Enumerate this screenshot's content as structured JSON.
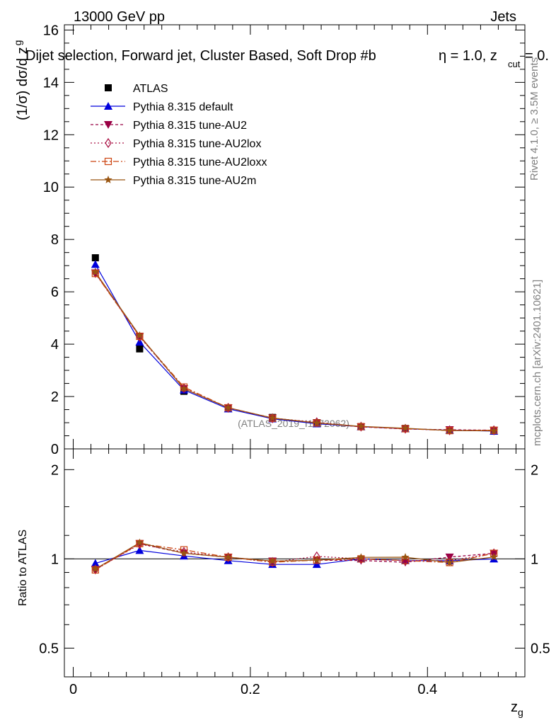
{
  "header": {
    "left": "13000 GeV pp",
    "right": "Jets",
    "selection": "Dijet selection, Forward jet, Cluster Based, Soft Drop #b",
    "eta_text": "η = 1.0, z",
    "cut_sub": "cut",
    "zcut_tail": "= 0.",
    "events_label": "≥ 3.5M events"
  },
  "side_labels": {
    "rivet": "Rivet 4.1.0, ≥ 3.5M events",
    "mcplots": "mcplots.cern.ch [arXiv:2401.10621]"
  },
  "watermark": "(ATLAS_2019_I1772062)",
  "colors": {
    "atlas": "#000000",
    "default": "#0000dd",
    "au2": "#990044",
    "au2lox": "#aa1144",
    "au2loxx": "#cc4411",
    "au2m": "#995511"
  },
  "chart_data": [
    {
      "panel": "main",
      "type": "line",
      "ylabel_main": "(1/σ) dσ/d z",
      "ylabel_sub": "g",
      "ylim": [
        0,
        16.2
      ],
      "yticks": [
        0,
        2,
        4,
        6,
        8,
        10,
        12,
        14,
        16
      ],
      "ytick_labels": [
        "0",
        "2",
        "4",
        "6",
        "8",
        "10",
        "12",
        "14",
        "16"
      ],
      "xlim": [
        -0.01,
        0.51
      ],
      "x": [
        0.025,
        0.075,
        0.125,
        0.175,
        0.225,
        0.275,
        0.325,
        0.375,
        0.425,
        0.475
      ],
      "legend": {
        "atlas": "ATLAS",
        "default": "Pythia 8.315 default",
        "au2": "Pythia 8.315 tune-AU2",
        "au2lox": "Pythia 8.315 tune-AU2lox",
        "au2loxx": "Pythia 8.315 tune-AU2loxx",
        "au2m": "Pythia 8.315 tune-AU2m"
      },
      "series": [
        {
          "key": "atlas",
          "name": "ATLAS",
          "values": [
            7.3,
            3.82,
            2.2,
            1.55,
            1.2,
            1.0,
            0.85,
            0.78,
            0.72,
            0.68
          ]
        },
        {
          "key": "default",
          "name": "Pythia 8.315 default",
          "values": [
            7.05,
            4.08,
            2.25,
            1.53,
            1.15,
            0.96,
            0.85,
            0.77,
            0.71,
            0.68
          ]
        },
        {
          "key": "au2",
          "name": "Pythia 8.315 tune-AU2",
          "values": [
            6.72,
            4.3,
            2.3,
            1.57,
            1.18,
            0.99,
            0.84,
            0.76,
            0.73,
            0.71
          ]
        },
        {
          "key": "au2lox",
          "name": "Pythia 8.315 tune-AU2lox",
          "values": [
            6.72,
            4.28,
            2.32,
            1.57,
            1.17,
            1.02,
            0.85,
            0.77,
            0.71,
            0.71
          ]
        },
        {
          "key": "au2loxx",
          "name": "Pythia 8.315 tune-AU2loxx",
          "values": [
            6.7,
            4.3,
            2.36,
            1.57,
            1.17,
            0.99,
            0.85,
            0.77,
            0.7,
            0.71
          ]
        },
        {
          "key": "au2m",
          "name": "Pythia 8.315 tune-AU2m",
          "values": [
            6.75,
            4.33,
            2.3,
            1.57,
            1.18,
            0.99,
            0.86,
            0.79,
            0.7,
            0.69
          ]
        }
      ]
    },
    {
      "panel": "ratio",
      "type": "line",
      "ylabel": "Ratio to ATLAS",
      "ylim": [
        0.4,
        2.35
      ],
      "yscale": "log",
      "yticks": [
        0.5,
        1,
        2
      ],
      "ytick_labels": [
        "0.5",
        "1",
        "2"
      ],
      "xlabel_main": "z",
      "xlabel_sub": "g",
      "xlim": [
        -0.01,
        0.51
      ],
      "xticks": [
        0,
        0.2,
        0.4
      ],
      "xtick_labels": [
        "0",
        "0.2",
        "0.4"
      ],
      "x": [
        0.025,
        0.075,
        0.125,
        0.175,
        0.225,
        0.275,
        0.325,
        0.375,
        0.425,
        0.475
      ],
      "series": [
        {
          "key": "default",
          "values": [
            0.966,
            1.068,
            1.023,
            0.987,
            0.958,
            0.958,
            1.0,
            0.987,
            0.986,
            1.0
          ]
        },
        {
          "key": "au2",
          "values": [
            0.921,
            1.126,
            1.045,
            1.013,
            0.983,
            0.99,
            0.988,
            0.974,
            1.014,
            1.044
          ]
        },
        {
          "key": "au2lox",
          "values": [
            0.921,
            1.12,
            1.055,
            1.013,
            0.975,
            1.02,
            1.0,
            0.987,
            0.986,
            1.044
          ]
        },
        {
          "key": "au2loxx",
          "values": [
            0.918,
            1.126,
            1.073,
            1.013,
            0.975,
            0.99,
            1.0,
            0.987,
            0.972,
            1.044
          ]
        },
        {
          "key": "au2m",
          "values": [
            0.925,
            1.134,
            1.045,
            1.013,
            0.983,
            0.99,
            1.012,
            1.013,
            0.972,
            1.015
          ]
        }
      ]
    }
  ]
}
